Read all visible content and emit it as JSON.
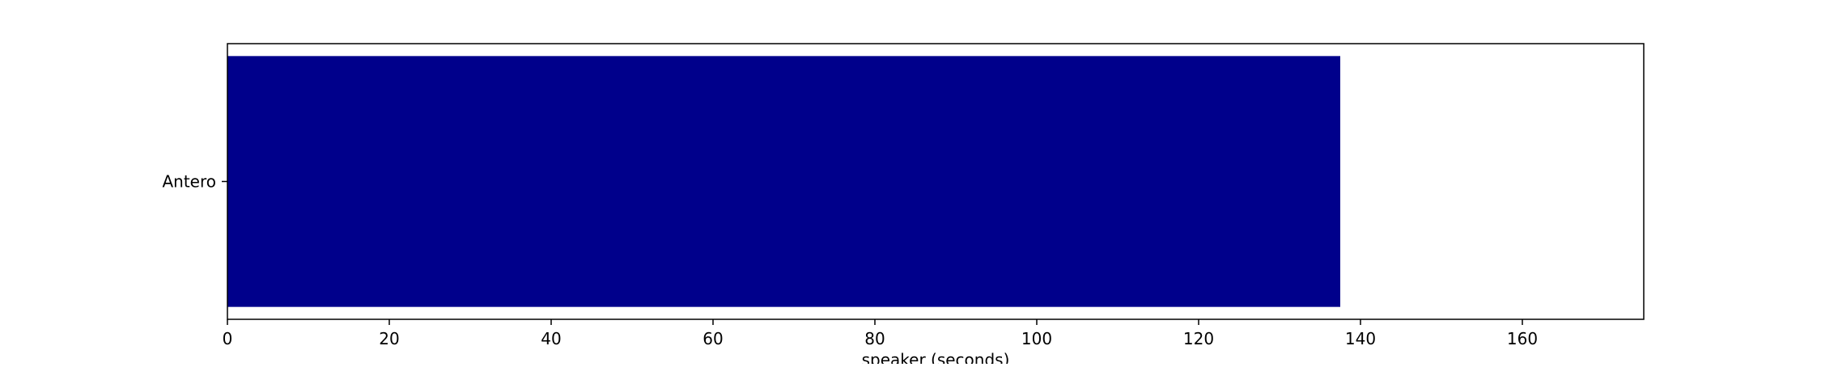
{
  "chart_data": {
    "type": "bar",
    "orientation": "horizontal",
    "categories": [
      "Antero"
    ],
    "values": [
      137.5
    ],
    "title": "",
    "xlabel": "speaker (seconds)",
    "ylabel": "",
    "xlim": [
      0,
      175
    ],
    "x_ticks": [
      0,
      20,
      40,
      60,
      80,
      100,
      120,
      140,
      160
    ],
    "grid": false,
    "bar_color": "#00008b"
  }
}
